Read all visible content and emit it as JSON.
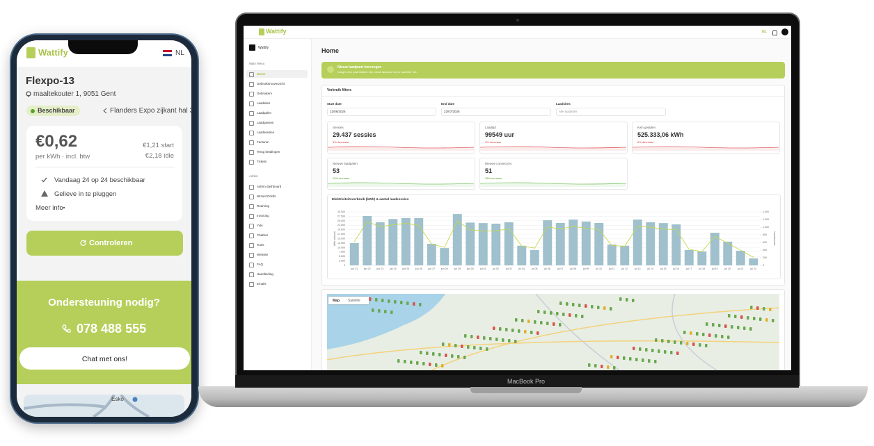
{
  "phone": {
    "brand": "Wattify",
    "lang": "NL",
    "station": "Flexpo-13",
    "address": "maaltekouter 1, 9051 Gent",
    "status": "Beschikbaar",
    "location": "Flanders Expo zijkant hal 3",
    "price": "€0,62",
    "price_unit": "per kWh · incl. btw",
    "start_fee": "€1,21 start",
    "idle_fee": "€2,18 idle",
    "availability": "Vandaag 24 op 24 beschikbaar",
    "warning": "Gelieve in te pluggen",
    "more": "Meer info",
    "button": "Controleren",
    "support_title": "Ondersteuning nodig?",
    "support_phone": "078 488 555",
    "chat": "Chat met ons!",
    "map_label": "Esko"
  },
  "laptop": {
    "brand": "Wattify",
    "lang": "NL",
    "workspace": "Wattify",
    "main_title": "Main Menu",
    "main_menu": [
      "Home",
      "Gebruikersoverzicht",
      "Gebruikers",
      "Laadsites",
      "Laadpalen",
      "Laadpassen",
      "Laadsessies",
      "Facturen",
      "Terug betalingen",
      "Tickets"
    ],
    "admin_title": "Admin",
    "admin_menu": [
      "Admin dashboard",
      "Wizard Drafts",
      "Roaming",
      "Invoicing",
      "Yuki",
      "Chatbot",
      "Tools",
      "Website",
      "FAQ",
      "Handleiding",
      "Emails"
    ],
    "page_title": "Home",
    "banner_title": "Nieuw laadpunt toevoegen",
    "banner_text": "Voeg in een paar klikken een nieuw laadpunt toe en activeer het.",
    "filters_title": "Verbruik filters",
    "start_label": "Start date",
    "start": "21/06/2026",
    "end_label": "End date",
    "end": "22/07/2026",
    "sites_label": "Laadsites",
    "sites": "Alle laadsites",
    "kpis": [
      {
        "label": "Sessies",
        "value": "29.437 sessies",
        "change": "5% decrease"
      },
      {
        "label": "Laadtijd",
        "value": "99549 uur",
        "change": "4% decrease"
      },
      {
        "label": "Kwh geladen",
        "value": "525.333,06 kWh",
        "change": "6% decrease"
      },
      {
        "label": "Nieuwe laadpalen",
        "value": "53",
        "change": "29% increase"
      },
      {
        "label": "Nieuwe connectors",
        "value": "51",
        "change": "28% increase"
      }
    ],
    "chart_data": {
      "type": "bar_line",
      "title": "Elektriciteitsverbruik (kWh) & aantal laadsessies",
      "ylabel": "kWh verbruik",
      "y2label": "Laadsessies",
      "categories": [
        "jun 21",
        "jun 22",
        "jun 23",
        "jun 24",
        "jun 25",
        "jun 26",
        "jun 27",
        "jun 28",
        "jun 29",
        "jun 30",
        "jul 01",
        "jul 02",
        "jul 03",
        "jul 04",
        "jul 05",
        "jul 06",
        "jul 07",
        "jul 08",
        "jul 09",
        "jul 10",
        "jul 11",
        "jul 12",
        "jul 13",
        "jul 14",
        "jul 15",
        "jul 16",
        "jul 17",
        "jul 18",
        "jul 19",
        "jul 20",
        "jul 21",
        "jul 22"
      ],
      "series": [
        {
          "type": "bar",
          "color": "#9fc0cc",
          "values": [
            12500,
            27700,
            24200,
            26000,
            26500,
            26500,
            12100,
            9700,
            28800,
            24000,
            23700,
            23400,
            24200,
            11000,
            8600,
            25300,
            23800,
            25700,
            24600,
            23800,
            11700,
            11000,
            25700,
            24200,
            23700,
            23000,
            8600,
            7800,
            18300,
            13300,
            8200,
            3900
          ]
        },
        {
          "type": "line",
          "axis": "y2",
          "color": "#c5d84a",
          "values": [
            620,
            1150,
            1010,
            1060,
            1100,
            1050,
            560,
            470,
            1160,
            930,
            900,
            900,
            960,
            510,
            450,
            1010,
            950,
            1020,
            970,
            940,
            520,
            500,
            1020,
            1000,
            950,
            940,
            420,
            360,
            760,
            580,
            400,
            210
          ]
        }
      ],
      "ylim": [
        0,
        30000
      ],
      "yticks": [
        0,
        {
          "value": 2500,
          "label": "2.500"
        },
        {
          "value": 5000,
          "label": "5.000"
        },
        {
          "value": 7500,
          "label": "7.500"
        },
        {
          "value": 10000,
          "label": "10.000"
        },
        {
          "value": 12500,
          "label": "12.500"
        },
        {
          "value": 15000,
          "label": "15.000"
        },
        {
          "value": 17500,
          "label": "17.500"
        },
        {
          "value": 20000,
          "label": "20.000"
        },
        {
          "value": 22500,
          "label": "22.500"
        },
        {
          "value": 25000,
          "label": "25.000"
        },
        {
          "value": 27500,
          "label": "27.500"
        },
        {
          "value": 30000,
          "label": "30.000"
        }
      ],
      "y2lim": [
        0,
        1400
      ],
      "y2ticks": [
        0,
        200,
        400,
        600,
        800,
        {
          "value": 1000,
          "label": "1.000"
        },
        {
          "value": 1200,
          "label": "1.200"
        },
        {
          "value": 1400,
          "label": "1.400"
        }
      ],
      "grid": true
    },
    "map_tabs": [
      "Map",
      "Satellite"
    ],
    "model": "MacBook Pro"
  }
}
